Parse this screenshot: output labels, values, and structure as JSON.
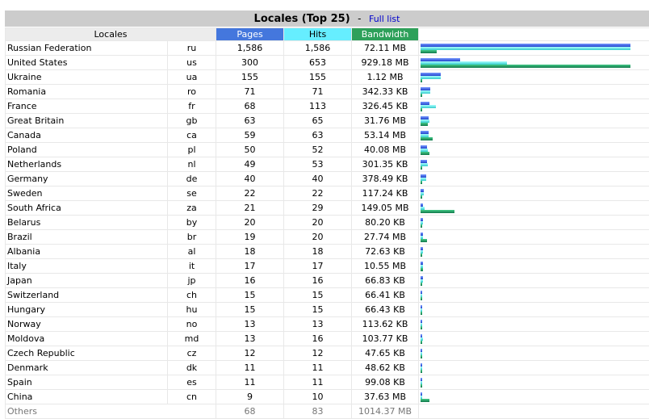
{
  "header": {
    "title": "Locales (Top 25)",
    "separator": "-",
    "full_list_label": "Full list"
  },
  "columns": {
    "locales": "Locales",
    "pages": "Pages",
    "hits": "Hits",
    "bandwidth": "Bandwidth"
  },
  "colors": {
    "pages": "#4477dd",
    "hits": "#66eeff",
    "bandwidth": "#2ea05a"
  },
  "rows": [
    {
      "name": "Russian Federation",
      "code": "ru",
      "pages": "1,586",
      "hits": "1,586",
      "bandwidth": "72.11 MB",
      "pv": 1586,
      "hv": 1586,
      "bv": 72.11
    },
    {
      "name": "United States",
      "code": "us",
      "pages": "300",
      "hits": "653",
      "bandwidth": "929.18 MB",
      "pv": 300,
      "hv": 653,
      "bv": 929.18
    },
    {
      "name": "Ukraine",
      "code": "ua",
      "pages": "155",
      "hits": "155",
      "bandwidth": "1.12 MB",
      "pv": 155,
      "hv": 155,
      "bv": 1.12
    },
    {
      "name": "Romania",
      "code": "ro",
      "pages": "71",
      "hits": "71",
      "bandwidth": "342.33 KB",
      "pv": 71,
      "hv": 71,
      "bv": 0.334
    },
    {
      "name": "France",
      "code": "fr",
      "pages": "68",
      "hits": "113",
      "bandwidth": "326.45 KB",
      "pv": 68,
      "hv": 113,
      "bv": 0.319
    },
    {
      "name": "Great Britain",
      "code": "gb",
      "pages": "63",
      "hits": "65",
      "bandwidth": "31.76 MB",
      "pv": 63,
      "hv": 65,
      "bv": 31.76
    },
    {
      "name": "Canada",
      "code": "ca",
      "pages": "59",
      "hits": "63",
      "bandwidth": "53.14 MB",
      "pv": 59,
      "hv": 63,
      "bv": 53.14
    },
    {
      "name": "Poland",
      "code": "pl",
      "pages": "50",
      "hits": "52",
      "bandwidth": "40.08 MB",
      "pv": 50,
      "hv": 52,
      "bv": 40.08
    },
    {
      "name": "Netherlands",
      "code": "nl",
      "pages": "49",
      "hits": "53",
      "bandwidth": "301.35 KB",
      "pv": 49,
      "hv": 53,
      "bv": 0.294
    },
    {
      "name": "Germany",
      "code": "de",
      "pages": "40",
      "hits": "40",
      "bandwidth": "378.49 KB",
      "pv": 40,
      "hv": 40,
      "bv": 0.37
    },
    {
      "name": "Sweden",
      "code": "se",
      "pages": "22",
      "hits": "22",
      "bandwidth": "117.24 KB",
      "pv": 22,
      "hv": 22,
      "bv": 0.114
    },
    {
      "name": "South Africa",
      "code": "za",
      "pages": "21",
      "hits": "29",
      "bandwidth": "149.05 MB",
      "pv": 21,
      "hv": 29,
      "bv": 149.05
    },
    {
      "name": "Belarus",
      "code": "by",
      "pages": "20",
      "hits": "20",
      "bandwidth": "80.20 KB",
      "pv": 20,
      "hv": 20,
      "bv": 0.078
    },
    {
      "name": "Brazil",
      "code": "br",
      "pages": "19",
      "hits": "20",
      "bandwidth": "27.74 MB",
      "pv": 19,
      "hv": 20,
      "bv": 27.74
    },
    {
      "name": "Albania",
      "code": "al",
      "pages": "18",
      "hits": "18",
      "bandwidth": "72.63 KB",
      "pv": 18,
      "hv": 18,
      "bv": 0.071
    },
    {
      "name": "Italy",
      "code": "it",
      "pages": "17",
      "hits": "17",
      "bandwidth": "10.55 MB",
      "pv": 17,
      "hv": 17,
      "bv": 10.55
    },
    {
      "name": "Japan",
      "code": "jp",
      "pages": "16",
      "hits": "16",
      "bandwidth": "66.83 KB",
      "pv": 16,
      "hv": 16,
      "bv": 0.065
    },
    {
      "name": "Switzerland",
      "code": "ch",
      "pages": "15",
      "hits": "15",
      "bandwidth": "66.41 KB",
      "pv": 15,
      "hv": 15,
      "bv": 0.065
    },
    {
      "name": "Hungary",
      "code": "hu",
      "pages": "15",
      "hits": "15",
      "bandwidth": "66.43 KB",
      "pv": 15,
      "hv": 15,
      "bv": 0.065
    },
    {
      "name": "Norway",
      "code": "no",
      "pages": "13",
      "hits": "13",
      "bandwidth": "113.62 KB",
      "pv": 13,
      "hv": 13,
      "bv": 0.111
    },
    {
      "name": "Moldova",
      "code": "md",
      "pages": "13",
      "hits": "16",
      "bandwidth": "103.77 KB",
      "pv": 13,
      "hv": 16,
      "bv": 0.101
    },
    {
      "name": "Czech Republic",
      "code": "cz",
      "pages": "12",
      "hits": "12",
      "bandwidth": "47.65 KB",
      "pv": 12,
      "hv": 12,
      "bv": 0.047
    },
    {
      "name": "Denmark",
      "code": "dk",
      "pages": "11",
      "hits": "11",
      "bandwidth": "48.62 KB",
      "pv": 11,
      "hv": 11,
      "bv": 0.047
    },
    {
      "name": "Spain",
      "code": "es",
      "pages": "11",
      "hits": "11",
      "bandwidth": "99.08 KB",
      "pv": 11,
      "hv": 11,
      "bv": 0.097
    },
    {
      "name": "China",
      "code": "cn",
      "pages": "9",
      "hits": "10",
      "bandwidth": "37.63 MB",
      "pv": 9,
      "hv": 10,
      "bv": 37.63
    }
  ],
  "others": {
    "label": "Others",
    "pages": "68",
    "hits": "83",
    "bandwidth": "1014.37 MB"
  }
}
